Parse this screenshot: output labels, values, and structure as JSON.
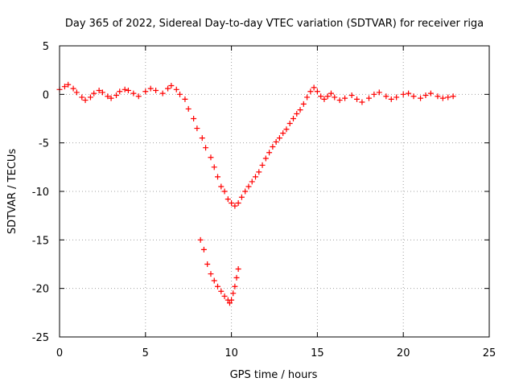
{
  "chart_data": {
    "type": "scatter",
    "title": "Day 365 of 2022, Sidereal Day-to-day VTEC variation (SDTVAR) for receiver riga",
    "xlabel": "GPS time / hours",
    "ylabel": "SDTVAR / TECUs",
    "xlim": [
      0,
      25
    ],
    "ylim": [
      -25,
      5
    ],
    "xticks": [
      "0",
      "5",
      "10",
      "15",
      "20",
      "25"
    ],
    "yticks": [
      "5",
      "0",
      "-5",
      "-10",
      "-15",
      "-20",
      "-25"
    ],
    "grid": true,
    "marker": "plus",
    "series_color": "#ff0000",
    "series": [
      {
        "name": "main",
        "x": [
          0.0,
          0.3,
          0.5,
          0.8,
          1.0,
          1.3,
          1.5,
          1.8,
          2.0,
          2.3,
          2.5,
          2.8,
          3.0,
          3.3,
          3.5,
          3.8,
          4.0,
          4.3,
          4.6,
          5.0,
          5.3,
          5.6,
          6.0,
          6.3,
          6.5,
          6.8,
          7.0,
          7.3,
          7.5,
          7.8,
          8.0,
          8.3,
          8.5,
          8.8,
          9.0,
          9.2,
          9.4,
          9.6,
          9.8,
          10.0,
          10.2,
          10.4,
          10.6,
          10.8,
          11.0,
          11.2,
          11.4,
          11.6,
          11.8,
          12.0,
          12.2,
          12.4,
          12.6,
          12.8,
          13.0,
          13.2,
          13.4,
          13.6,
          13.8,
          14.0,
          14.2,
          14.4,
          14.6,
          14.8,
          15.0,
          15.2,
          15.4,
          15.6,
          15.8,
          16.0,
          16.3,
          16.6,
          17.0,
          17.3,
          17.6,
          18.0,
          18.3,
          18.6,
          19.0,
          19.3,
          19.6,
          20.0,
          20.3,
          20.6,
          21.0,
          21.3,
          21.6,
          22.0,
          22.3,
          22.6,
          22.9
        ],
        "y": [
          0.5,
          0.8,
          1.0,
          0.6,
          0.2,
          -0.3,
          -0.6,
          -0.3,
          0.1,
          0.4,
          0.2,
          -0.2,
          -0.4,
          -0.1,
          0.3,
          0.5,
          0.4,
          0.1,
          -0.2,
          0.3,
          0.6,
          0.4,
          0.1,
          0.6,
          0.9,
          0.5,
          0.0,
          -0.5,
          -1.5,
          -2.5,
          -3.5,
          -4.5,
          -5.5,
          -6.5,
          -7.5,
          -8.5,
          -9.5,
          -10.0,
          -10.8,
          -11.2,
          -11.5,
          -11.2,
          -10.6,
          -10.0,
          -9.5,
          -9.0,
          -8.5,
          -8.0,
          -7.3,
          -6.6,
          -6.0,
          -5.4,
          -4.9,
          -4.5,
          -4.0,
          -3.6,
          -3.0,
          -2.5,
          -2.0,
          -1.6,
          -1.0,
          -0.3,
          0.3,
          0.7,
          0.3,
          -0.2,
          -0.5,
          -0.2,
          0.1,
          -0.3,
          -0.6,
          -0.4,
          -0.1,
          -0.5,
          -0.8,
          -0.4,
          0.0,
          0.2,
          -0.2,
          -0.5,
          -0.3,
          0.0,
          0.1,
          -0.2,
          -0.4,
          -0.1,
          0.1,
          -0.2,
          -0.4,
          -0.3,
          -0.2
        ]
      },
      {
        "name": "lower",
        "x": [
          8.2,
          8.4,
          8.6,
          8.8,
          9.0,
          9.2,
          9.4,
          9.6,
          9.8,
          9.9,
          10.0,
          10.1,
          10.2,
          10.3,
          10.4
        ],
        "y": [
          -15.0,
          -16.0,
          -17.5,
          -18.5,
          -19.2,
          -19.8,
          -20.3,
          -20.8,
          -21.2,
          -21.5,
          -21.2,
          -20.5,
          -19.8,
          -18.9,
          -18.0
        ]
      }
    ]
  }
}
